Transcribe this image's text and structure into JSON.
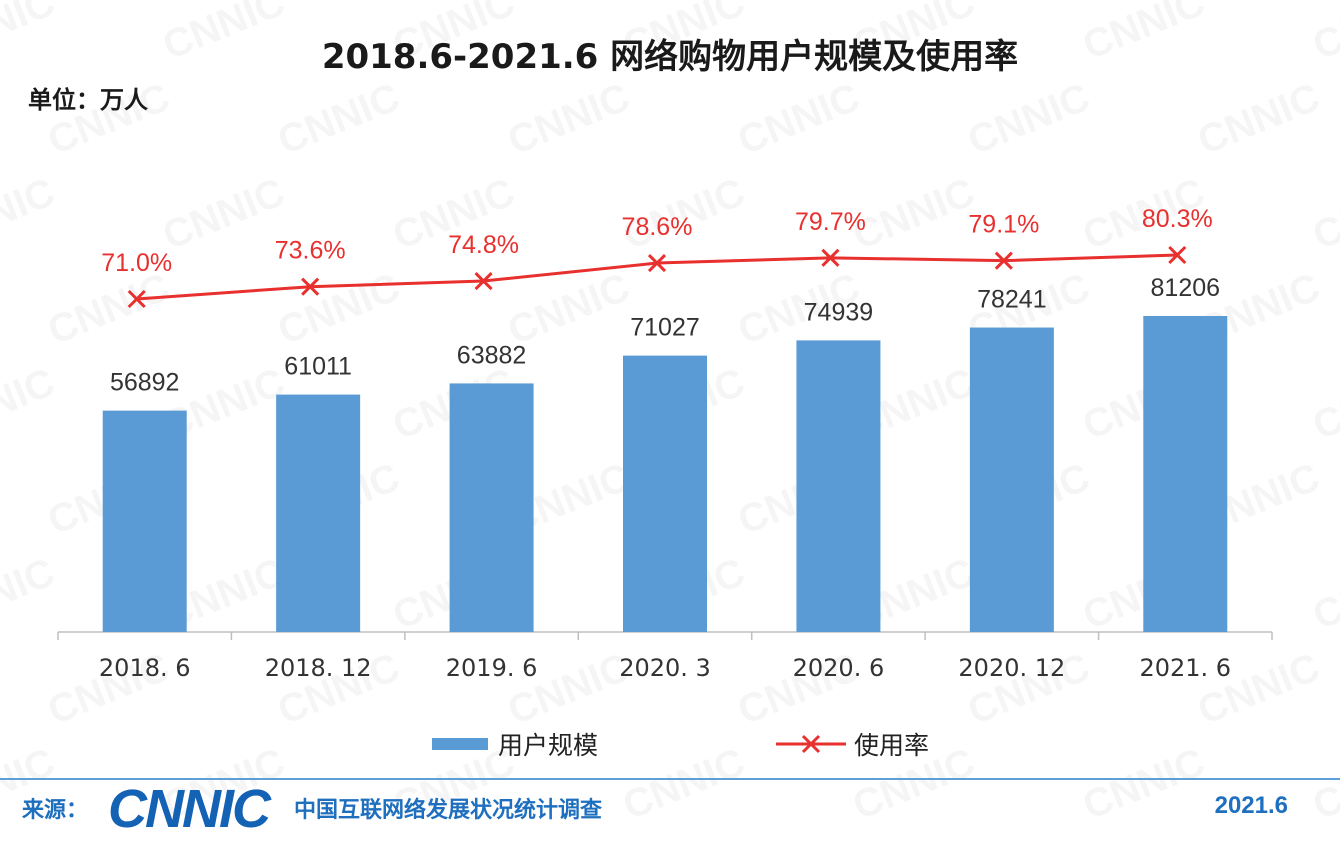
{
  "colors": {
    "bar": "#5b9bd5",
    "line": "#e8302e",
    "axis": "#bfbfbf",
    "footer": "#1f6fbf"
  },
  "watermark": "CNNIC",
  "chart_data": {
    "type": "bar",
    "title": "2018.6-2021.6 网络购物用户规模及使用率",
    "unit_label": "单位：万人",
    "categories": [
      "2018. 6",
      "2018. 12",
      "2019. 6",
      "2020. 3",
      "2020. 6",
      "2020. 12",
      "2021. 6"
    ],
    "series": [
      {
        "name": "用户规模",
        "type": "bar",
        "values": [
          56892,
          61011,
          63882,
          71027,
          74939,
          78241,
          81206
        ]
      },
      {
        "name": "使用率",
        "type": "line",
        "marker": "x",
        "values": [
          71.0,
          73.6,
          74.8,
          78.6,
          79.7,
          79.1,
          80.3
        ],
        "labels": [
          "71.0%",
          "73.6%",
          "74.8%",
          "78.6%",
          "79.7%",
          "79.1%",
          "80.3%"
        ]
      }
    ],
    "bar_ylim": [
      0,
      100000
    ],
    "line_ylim": [
      0,
      120
    ],
    "legend": [
      "用户规模",
      "使用率"
    ],
    "legend_position": "bottom"
  },
  "footer": {
    "source_label": "来源：",
    "org_logo": "CNNIC",
    "org_name": "中国互联网络发展状况统计调查",
    "date": "2021.6"
  }
}
